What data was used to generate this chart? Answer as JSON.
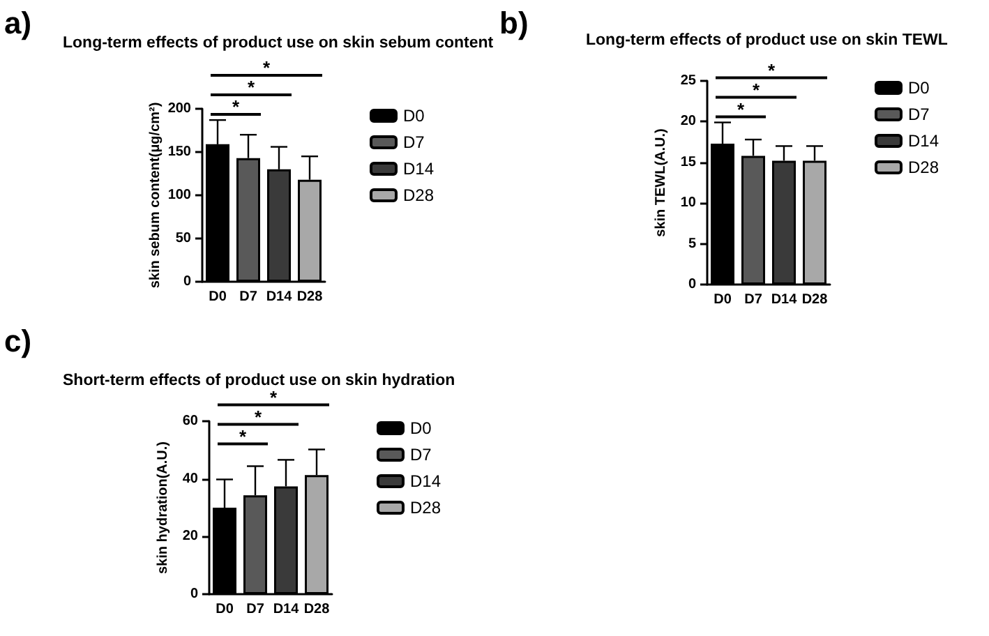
{
  "chart_data": [
    {
      "type": "bar",
      "title": "Long-term effects of product use on skin sebum content",
      "ylabel": "skin sebum content(μg/cm²)",
      "annotations": [
        "a)",
        "*",
        "*",
        "*"
      ],
      "categories": [
        "D0",
        "D7",
        "D14",
        "D28"
      ],
      "series": [
        {
          "name": "D0",
          "color": "#000000",
          "values": [
            159,
            null,
            null,
            null
          ],
          "errors": [
            [
              159,
              187
            ],
            null,
            null,
            null
          ]
        },
        {
          "name": "D7",
          "color": "#595959",
          "values": [
            null,
            143,
            null,
            null
          ],
          "errors": [
            null,
            [
              143,
              170
            ],
            null,
            null
          ]
        },
        {
          "name": "D14",
          "color": "#3a3a3a",
          "values": [
            null,
            null,
            130,
            null
          ],
          "errors": [
            null,
            null,
            [
              130,
              156
            ],
            null
          ]
        },
        {
          "name": "D28",
          "color": "#a8a8a8",
          "values": [
            null,
            null,
            null,
            118
          ],
          "errors": [
            null,
            null,
            null,
            [
              118,
              145
            ]
          ]
        }
      ],
      "ylim": [
        0,
        200
      ],
      "yticks": [
        0,
        50,
        100,
        150,
        200
      ],
      "grid": false,
      "legend": "right"
    },
    {
      "type": "bar",
      "title": "Long-term effects of product use on skin TEWL",
      "ylabel": "skin TEWL(A.U.)",
      "annotations": [
        "b)",
        "*",
        "*",
        "*"
      ],
      "categories": [
        "D0",
        "D7",
        "D14",
        "D28"
      ],
      "series": [
        {
          "name": "D0",
          "color": "#000000",
          "values": [
            17.3,
            null,
            null,
            null
          ],
          "errors": [
            [
              17.3,
              19.9
            ],
            null,
            null,
            null
          ]
        },
        {
          "name": "D7",
          "color": "#595959",
          "values": [
            null,
            15.8,
            null,
            null
          ],
          "errors": [
            null,
            [
              15.8,
              17.8
            ],
            null,
            null
          ]
        },
        {
          "name": "D14",
          "color": "#3a3a3a",
          "values": [
            null,
            null,
            15.2,
            null
          ],
          "errors": [
            null,
            null,
            [
              15.2,
              17.0
            ],
            null
          ]
        },
        {
          "name": "D28",
          "color": "#a8a8a8",
          "values": [
            null,
            null,
            null,
            15.2
          ],
          "errors": [
            null,
            null,
            null,
            [
              15.2,
              17.0
            ]
          ]
        }
      ],
      "ylim": [
        0,
        25
      ],
      "yticks": [
        0,
        5,
        10,
        15,
        20,
        25
      ],
      "grid": false,
      "legend": "right"
    },
    {
      "type": "bar",
      "title": "Short-term effects of product use on skin hydration",
      "ylabel": "skin hydration(A.U.)",
      "annotations": [
        "c)",
        "*",
        "*",
        "*"
      ],
      "categories": [
        "D0",
        "D7",
        "D14",
        "D28"
      ],
      "series": [
        {
          "name": "D0",
          "color": "#000000",
          "values": [
            30,
            null,
            null,
            null
          ],
          "errors": [
            [
              30,
              39.8
            ],
            null,
            null,
            null
          ]
        },
        {
          "name": "D7",
          "color": "#595959",
          "values": [
            null,
            34.3,
            null,
            null
          ],
          "errors": [
            null,
            [
              34.3,
              44.4
            ],
            null,
            null
          ]
        },
        {
          "name": "D14",
          "color": "#3a3a3a",
          "values": [
            null,
            null,
            37.4,
            null
          ],
          "errors": [
            null,
            null,
            [
              37.4,
              46.6
            ],
            null
          ]
        },
        {
          "name": "D28",
          "color": "#a8a8a8",
          "values": [
            null,
            null,
            null,
            41.3
          ],
          "errors": [
            null,
            null,
            null,
            [
              41.3,
              50.2
            ]
          ]
        }
      ],
      "ylim": [
        0,
        60
      ],
      "yticks": [
        0,
        20,
        40,
        60
      ],
      "grid": false,
      "legend": "right"
    }
  ]
}
